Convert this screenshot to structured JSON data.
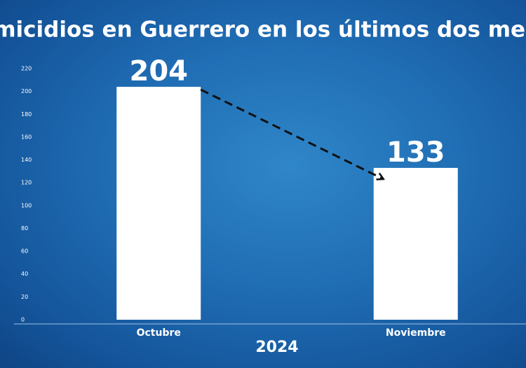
{
  "chart_data": {
    "type": "bar",
    "title": "Homicidios en Guerrero en los últimos dos meses",
    "categories": [
      "Octubre",
      "Noviembre"
    ],
    "values": [
      204,
      133
    ],
    "color": "#ffffff",
    "xlabel": "2024",
    "ylim": [
      0,
      220
    ],
    "yticks": [
      0,
      20,
      40,
      60,
      80,
      100,
      120,
      140,
      160,
      180,
      200,
      220
    ]
  }
}
